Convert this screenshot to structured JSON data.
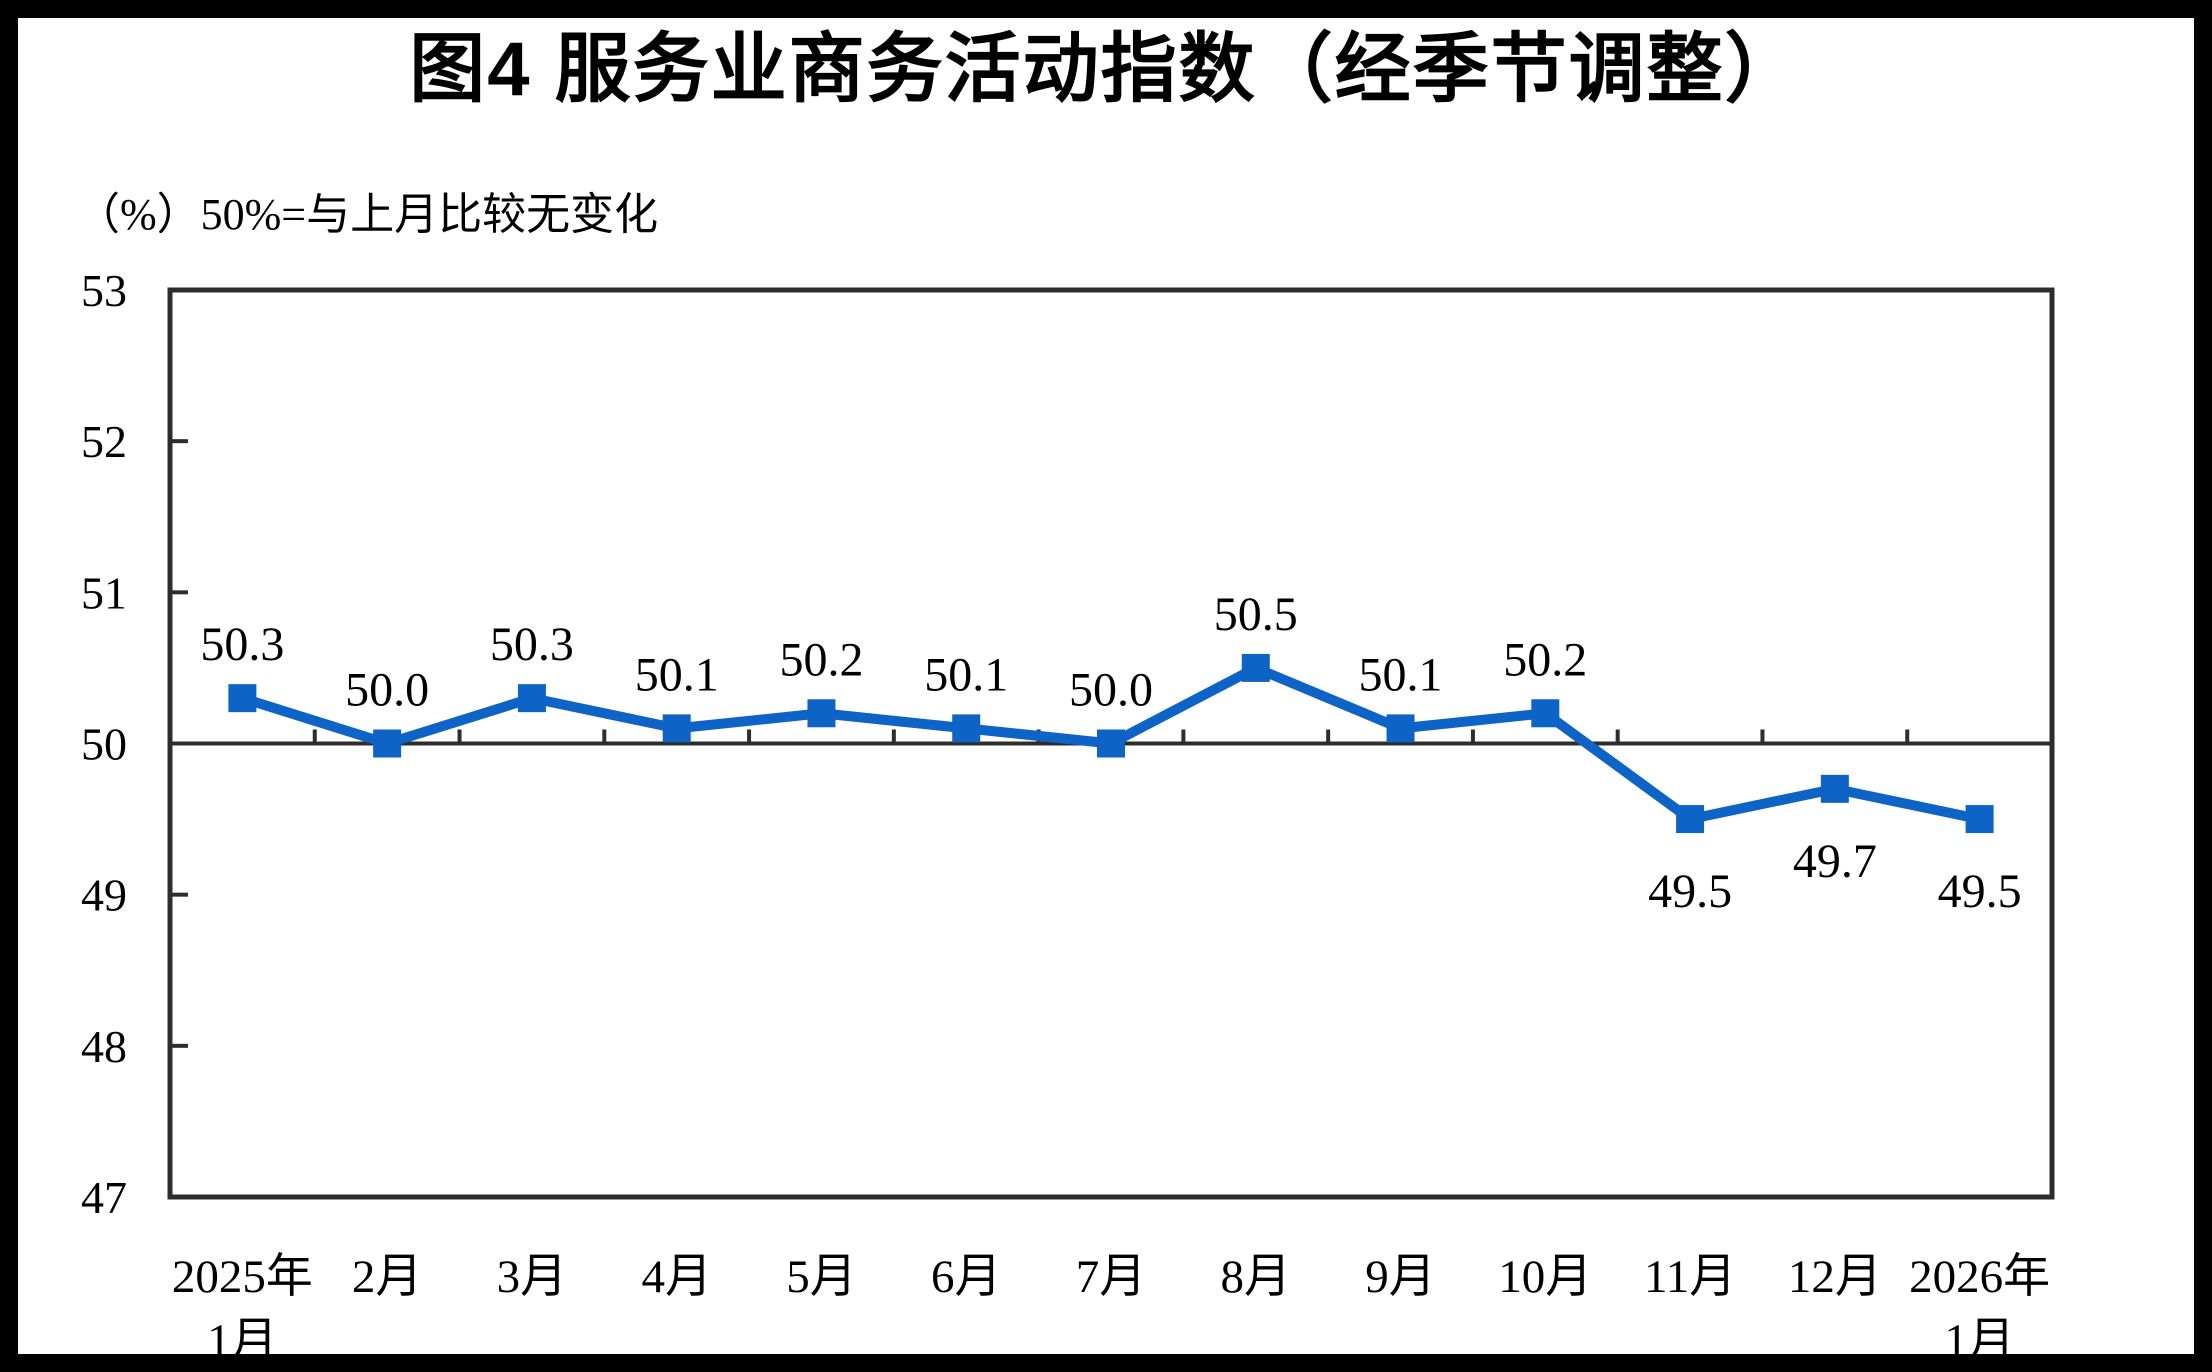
{
  "chart_data": {
    "type": "line",
    "title": "图4  服务业商务活动指数（经季节调整）",
    "subtitle": "（%）50%=与上月比较无变化",
    "categories": [
      "2025年\n1月",
      "2月",
      "3月",
      "4月",
      "5月",
      "6月",
      "7月",
      "8月",
      "9月",
      "10月",
      "11月",
      "12月",
      "2026年\n1月"
    ],
    "values": [
      50.3,
      50.0,
      50.3,
      50.1,
      50.2,
      50.1,
      50.0,
      50.5,
      50.1,
      50.2,
      49.5,
      49.7,
      49.5
    ],
    "value_labels": [
      "50.3",
      "50.0",
      "50.3",
      "50.1",
      "50.2",
      "50.1",
      "50.0",
      "50.5",
      "50.1",
      "50.2",
      "49.5",
      "49.7",
      "49.5"
    ],
    "label_positions": [
      "above",
      "above",
      "above",
      "above",
      "above",
      "above",
      "above",
      "above",
      "above",
      "above",
      "below",
      "below",
      "below"
    ],
    "ylim": [
      47,
      53
    ],
    "y_ticks": [
      47,
      48,
      49,
      50,
      51,
      52,
      53
    ],
    "reference_line": 50,
    "grid": false,
    "legend": false,
    "series_color": "#0E63C7",
    "axis_color": "#2D2D2D",
    "text_color": "#000000",
    "marker_shape": "square"
  }
}
